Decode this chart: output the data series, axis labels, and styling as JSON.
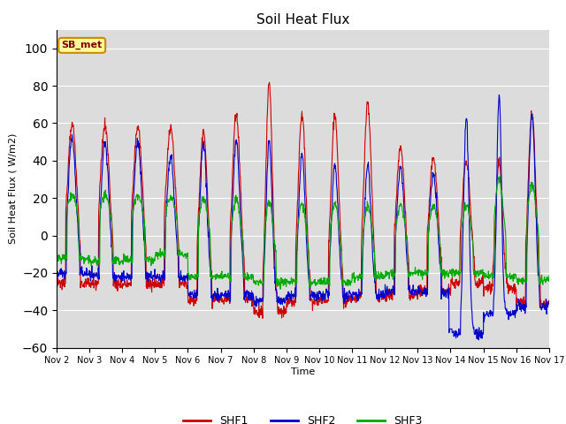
{
  "title": "Soil Heat Flux",
  "ylabel": "Soil Heat Flux ( W/m2)",
  "xlabel": "Time",
  "ylim": [
    -60,
    110
  ],
  "yticks": [
    -60,
    -40,
    -20,
    0,
    20,
    40,
    60,
    80,
    100
  ],
  "plot_bg": "#dcdcdc",
  "fig_bg": "#ffffff",
  "shf1_color": "#cc0000",
  "shf2_color": "#0000cc",
  "shf3_color": "#00aa00",
  "annotation_text": "SB_met",
  "annotation_bg": "#ffff99",
  "annotation_border": "#cc8800",
  "x_tick_labels": [
    "Nov 2",
    "Nov 3",
    "Nov 4",
    "Nov 5",
    "Nov 6",
    "Nov 7",
    "Nov 8",
    "Nov 9",
    "Nov 10",
    "Nov 11",
    "Nov 12",
    "Nov 13",
    "Nov 14",
    "Nov 15",
    "Nov 16",
    "Nov 17"
  ],
  "num_days": 15,
  "points_per_day": 96
}
